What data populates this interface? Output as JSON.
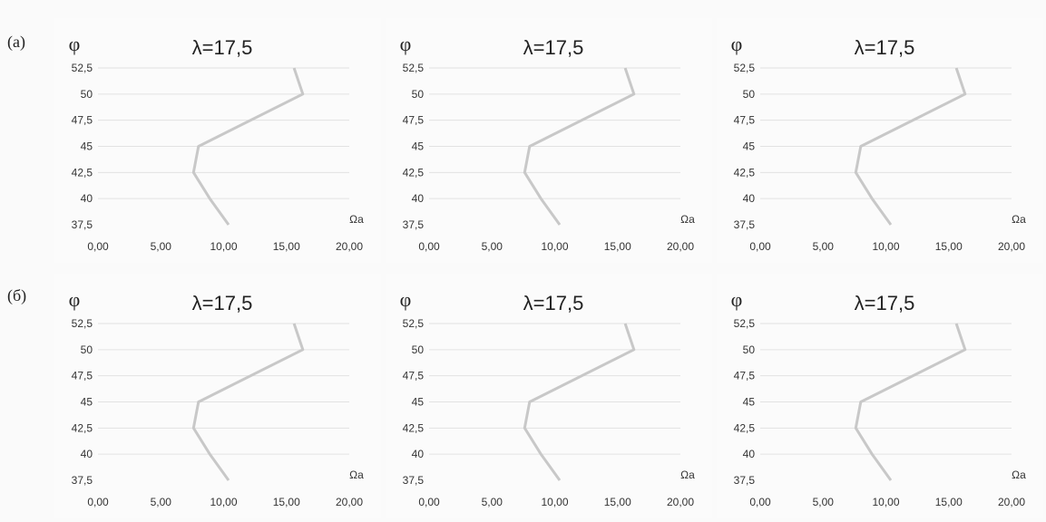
{
  "row_labels": [
    "(а)",
    "(б)"
  ],
  "chart_data": [
    {
      "type": "line",
      "row": 0,
      "col": 0,
      "title": "λ=17,5",
      "ylabel": "φ",
      "xlabel": "Ωa",
      "xlim": [
        0,
        20
      ],
      "ylim": [
        37.5,
        52.5
      ],
      "xticks": [
        "0,00",
        "5,00",
        "10,00",
        "15,00",
        "20,00"
      ],
      "yticks": [
        "37,5",
        "40",
        "42,5",
        "45",
        "47,5",
        "50",
        "52,5"
      ],
      "series": [
        {
          "x": [
            10.4,
            8.9,
            7.6,
            8.0,
            16.3,
            15.6
          ],
          "y": [
            37.5,
            40,
            42.5,
            45,
            50,
            52.5
          ]
        }
      ]
    },
    {
      "type": "line",
      "row": 0,
      "col": 1,
      "title": "λ=17,5",
      "ylabel": "φ",
      "xlabel": "Ωa",
      "xlim": [
        0,
        20
      ],
      "ylim": [
        37.5,
        52.5
      ],
      "xticks": [
        "0,00",
        "5,00",
        "10,00",
        "15,00",
        "20,00"
      ],
      "yticks": [
        "37,5",
        "40",
        "42,5",
        "45",
        "47,5",
        "50",
        "52,5"
      ],
      "series": [
        {
          "x": [
            10.4,
            8.9,
            7.6,
            8.0,
            16.3,
            15.6
          ],
          "y": [
            37.5,
            40,
            42.5,
            45,
            50,
            52.5
          ]
        }
      ]
    },
    {
      "type": "line",
      "row": 0,
      "col": 2,
      "title": "λ=17,5",
      "ylabel": "φ",
      "xlabel": "Ωa",
      "xlim": [
        0,
        20
      ],
      "ylim": [
        37.5,
        52.5
      ],
      "xticks": [
        "0,00",
        "5,00",
        "10,00",
        "15,00",
        "20,00"
      ],
      "yticks": [
        "37,5",
        "40",
        "42,5",
        "45",
        "47,5",
        "50",
        "52,5"
      ],
      "series": [
        {
          "x": [
            10.4,
            8.9,
            7.6,
            8.0,
            16.3,
            15.6
          ],
          "y": [
            37.5,
            40,
            42.5,
            45,
            50,
            52.5
          ]
        }
      ]
    },
    {
      "type": "line",
      "row": 1,
      "col": 0,
      "title": "λ=17,5",
      "ylabel": "φ",
      "xlabel": "Ωa",
      "xlim": [
        0,
        20
      ],
      "ylim": [
        37.5,
        52.5
      ],
      "xticks": [
        "0,00",
        "5,00",
        "10,00",
        "15,00",
        "20,00"
      ],
      "yticks": [
        "37,5",
        "40",
        "42,5",
        "45",
        "47,5",
        "50",
        "52,5"
      ],
      "series": [
        {
          "x": [
            10.4,
            8.9,
            7.6,
            8.0,
            16.3,
            15.6
          ],
          "y": [
            37.5,
            40,
            42.5,
            45,
            50,
            52.5
          ]
        }
      ]
    },
    {
      "type": "line",
      "row": 1,
      "col": 1,
      "title": "λ=17,5",
      "ylabel": "φ",
      "xlabel": "Ωa",
      "xlim": [
        0,
        20
      ],
      "ylim": [
        37.5,
        52.5
      ],
      "xticks": [
        "0,00",
        "5,00",
        "10,00",
        "15,00",
        "20,00"
      ],
      "yticks": [
        "37,5",
        "40",
        "42,5",
        "45",
        "47,5",
        "50",
        "52,5"
      ],
      "series": [
        {
          "x": [
            10.4,
            8.9,
            7.6,
            8.0,
            16.3,
            15.6
          ],
          "y": [
            37.5,
            40,
            42.5,
            45,
            50,
            52.5
          ]
        }
      ]
    },
    {
      "type": "line",
      "row": 1,
      "col": 2,
      "title": "λ=17,5",
      "ylabel": "φ",
      "xlabel": "Ωa",
      "xlim": [
        0,
        20
      ],
      "ylim": [
        37.5,
        52.5
      ],
      "xticks": [
        "0,00",
        "5,00",
        "10,00",
        "15,00",
        "20,00"
      ],
      "yticks": [
        "37,5",
        "40",
        "42,5",
        "45",
        "47,5",
        "50",
        "52,5"
      ],
      "series": [
        {
          "x": [
            10.4,
            8.9,
            7.6,
            8.0,
            16.3,
            15.6
          ],
          "y": [
            37.5,
            40,
            42.5,
            45,
            50,
            52.5
          ]
        }
      ]
    }
  ]
}
